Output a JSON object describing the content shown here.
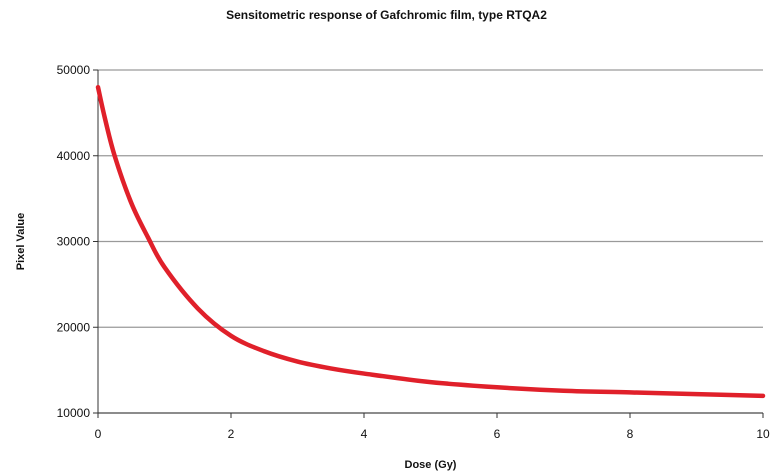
{
  "chart_data": {
    "type": "line",
    "title": "Sensitometric response of Gafchromic film, type RTQA2",
    "xlabel": "Dose (Gy)",
    "ylabel": "Pixel Value",
    "xlim": [
      0,
      10
    ],
    "ylim": [
      10000,
      50000
    ],
    "xticks": [
      0,
      2,
      4,
      6,
      8,
      10
    ],
    "yticks": [
      10000,
      20000,
      30000,
      40000,
      50000
    ],
    "grid": "horizontal",
    "legend": "none",
    "series": [
      {
        "color": "#e0202a",
        "x": [
          0,
          0.1,
          0.25,
          0.5,
          0.75,
          1,
          1.5,
          2,
          2.5,
          3,
          3.5,
          4,
          5,
          6,
          7,
          8,
          9,
          10
        ],
        "y": [
          48000,
          44500,
          40000,
          34500,
          30500,
          27000,
          22200,
          19000,
          17200,
          16000,
          15200,
          14600,
          13600,
          13000,
          12600,
          12400,
          12200,
          12000
        ]
      }
    ]
  }
}
